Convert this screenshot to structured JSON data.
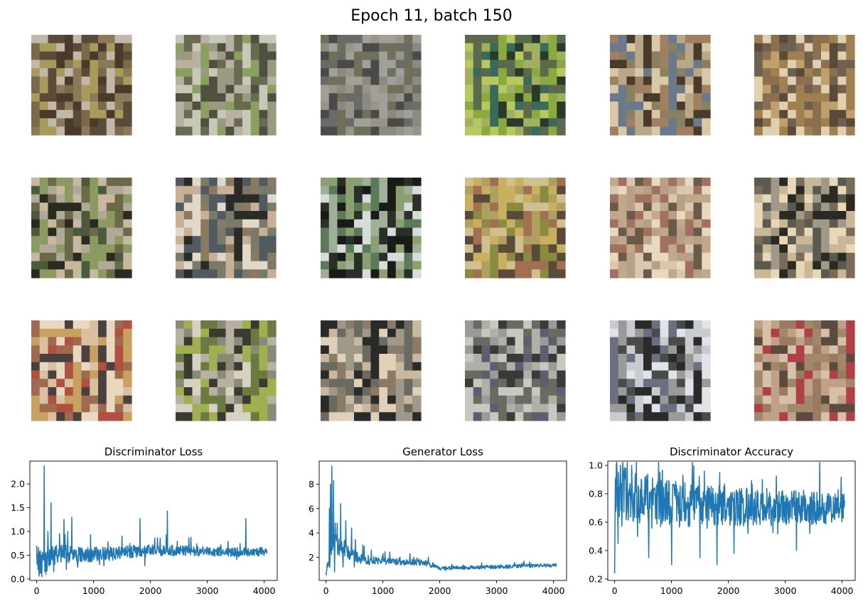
{
  "figure": {
    "title": "Epoch 11, batch 150"
  },
  "sample_grid": {
    "rows": 3,
    "cols": 6,
    "samples": [
      {
        "colors": [
          "#7a6a4a",
          "#a89a5a",
          "#5a4a3a",
          "#c0b8a8",
          "#4a3a2a",
          "#8a7a5a"
        ]
      },
      {
        "colors": [
          "#9a9a80",
          "#b8b0a0",
          "#6a6a50",
          "#c8c8b8",
          "#8aa060",
          "#505040"
        ]
      },
      {
        "colors": [
          "#6a6a68",
          "#8a8a80",
          "#4a4a48",
          "#a0a098",
          "#70705a",
          "#9a9488"
        ]
      },
      {
        "colors": [
          "#3a6a5a",
          "#8aaa40",
          "#2a3a2a",
          "#b8c860",
          "#5a6a4a",
          "#a0b060"
        ]
      },
      {
        "colors": [
          "#8a8060",
          "#b8a888",
          "#4a3a2a",
          "#d8c8a8",
          "#a08060",
          "#6a7a8a"
        ]
      },
      {
        "colors": [
          "#8a7050",
          "#c0a068",
          "#5a4a3a",
          "#e0d0b0",
          "#a08050",
          "#706050"
        ]
      },
      {
        "colors": [
          "#4a5a3a",
          "#8a9a60",
          "#2a2a22",
          "#b0a898",
          "#6a6a48",
          "#c8b8a0"
        ]
      },
      {
        "colors": [
          "#7a7a68",
          "#c8b098",
          "#2a2a28",
          "#e0d8c8",
          "#8a7a60",
          "#505a60"
        ]
      },
      {
        "colors": [
          "#2a3028",
          "#d8dcd8",
          "#5a7a58",
          "#a0b098",
          "#1a1a18",
          "#8aa070"
        ]
      },
      {
        "colors": [
          "#8a8a40",
          "#c8b060",
          "#5a4a3a",
          "#d0c090",
          "#a07050",
          "#b0a060"
        ]
      },
      {
        "colors": [
          "#b8a088",
          "#d8c8b0",
          "#6a5a4a",
          "#e8d8c0",
          "#a07060",
          "#c0a888"
        ]
      },
      {
        "colors": [
          "#5a5a50",
          "#a09888",
          "#2a2a22",
          "#e8d8b8",
          "#7a6a58",
          "#c8b898"
        ]
      },
      {
        "colors": [
          "#a06a50",
          "#d8c0a0",
          "#4a4040",
          "#e8d8c0",
          "#b05040",
          "#c8a060"
        ]
      },
      {
        "colors": [
          "#8a8a78",
          "#b8b0a0",
          "#3a3a30",
          "#d8d0c0",
          "#6a7a40",
          "#a0b050"
        ]
      },
      {
        "colors": [
          "#6a6a60",
          "#c8b8a0",
          "#2a2a28",
          "#e0d0b8",
          "#8a7a68",
          "#a09888"
        ]
      },
      {
        "colors": [
          "#5a6070",
          "#9a9a98",
          "#3a3a38",
          "#c8c8c0",
          "#6a6a60",
          "#b0b0a8"
        ]
      },
      {
        "colors": [
          "#4a4a48",
          "#c8ccd0",
          "#2a2a2a",
          "#e0e4e8",
          "#6a7080",
          "#9a9a98"
        ]
      },
      {
        "colors": [
          "#9a7a60",
          "#c0a088",
          "#5a4a40",
          "#d8c0a8",
          "#b04048",
          "#a08868"
        ]
      }
    ]
  },
  "chart_data": [
    {
      "type": "line",
      "title": "Discriminator Loss",
      "xlabel": "",
      "ylabel": "",
      "xlim": [
        -120,
        4230
      ],
      "ylim": [
        -0.03,
        2.48
      ],
      "xticks": [
        0,
        1000,
        2000,
        3000,
        4000
      ],
      "xtick_labels": [
        "0",
        "1000",
        "2000",
        "3000",
        "4000"
      ],
      "yticks": [
        0.0,
        0.5,
        1.0,
        1.5,
        2.0
      ],
      "ytick_labels": [
        "0.0",
        "0.5",
        "1.0",
        "1.5",
        "2.0"
      ],
      "grid": false,
      "color": "#1f77b4",
      "x_end": 4050,
      "envelope": [
        [
          0,
          0.45,
          0.5
        ],
        [
          80,
          0.3,
          0.6
        ],
        [
          300,
          0.55,
          0.4
        ],
        [
          700,
          0.5,
          0.35
        ],
        [
          1200,
          0.52,
          0.3
        ],
        [
          1600,
          0.55,
          0.3
        ],
        [
          2000,
          0.6,
          0.25
        ],
        [
          2500,
          0.6,
          0.22
        ],
        [
          3000,
          0.58,
          0.2
        ],
        [
          3500,
          0.56,
          0.2
        ],
        [
          4050,
          0.58,
          0.18
        ]
      ],
      "spikes": [
        [
          0,
          0.7
        ],
        [
          40,
          0.06
        ],
        [
          90,
          0.05
        ],
        [
          130,
          2.38
        ],
        [
          160,
          0.1
        ],
        [
          200,
          1.0
        ],
        [
          250,
          1.6
        ],
        [
          300,
          0.15
        ],
        [
          400,
          0.95
        ],
        [
          480,
          1.25
        ],
        [
          520,
          0.2
        ],
        [
          620,
          1.3
        ],
        [
          720,
          0.25
        ],
        [
          950,
          0.93
        ],
        [
          1180,
          0.28
        ],
        [
          1500,
          0.9
        ],
        [
          1820,
          1.27
        ],
        [
          1900,
          0.28
        ],
        [
          2300,
          1.43
        ],
        [
          3680,
          1.27
        ]
      ]
    },
    {
      "type": "line",
      "title": "Generator Loss",
      "xlabel": "",
      "ylabel": "",
      "xlim": [
        -120,
        4230
      ],
      "ylim": [
        0.1,
        9.9
      ],
      "xticks": [
        0,
        1000,
        2000,
        3000,
        4000
      ],
      "xtick_labels": [
        "0",
        "1000",
        "2000",
        "3000",
        "4000"
      ],
      "yticks": [
        2,
        4,
        6,
        8
      ],
      "ytick_labels": [
        "2",
        "4",
        "6",
        "8"
      ],
      "grid": false,
      "color": "#1f77b4",
      "x_end": 4050,
      "envelope": [
        [
          0,
          0.8,
          0.5
        ],
        [
          60,
          1.8,
          1.2
        ],
        [
          120,
          3.0,
          2.0
        ],
        [
          250,
          3.0,
          1.8
        ],
        [
          400,
          2.4,
          1.2
        ],
        [
          600,
          1.9,
          0.9
        ],
        [
          900,
          1.7,
          0.6
        ],
        [
          1300,
          1.6,
          0.5
        ],
        [
          1700,
          1.6,
          0.5
        ],
        [
          2000,
          1.1,
          0.3
        ],
        [
          2500,
          1.15,
          0.3
        ],
        [
          3000,
          1.2,
          0.3
        ],
        [
          3500,
          1.3,
          0.3
        ],
        [
          4050,
          1.35,
          0.3
        ]
      ],
      "spikes": [
        [
          0,
          0.5
        ],
        [
          60,
          6.0
        ],
        [
          80,
          8.0
        ],
        [
          100,
          9.5
        ],
        [
          130,
          8.3
        ],
        [
          150,
          0.8
        ],
        [
          200,
          4.8
        ],
        [
          260,
          6.4
        ],
        [
          300,
          1.2
        ],
        [
          350,
          5.0
        ],
        [
          450,
          4.4
        ],
        [
          500,
          1.2
        ],
        [
          650,
          3.0
        ],
        [
          800,
          2.6
        ],
        [
          1000,
          2.3
        ],
        [
          1300,
          2.0
        ],
        [
          1800,
          2.0
        ],
        [
          2100,
          0.9
        ]
      ]
    },
    {
      "type": "line",
      "title": "Discriminator Accuracy",
      "xlabel": "",
      "ylabel": "",
      "xlim": [
        -120,
        4230
      ],
      "ylim": [
        0.19,
        1.03
      ],
      "xticks": [
        0,
        1000,
        2000,
        3000,
        4000
      ],
      "xtick_labels": [
        "0",
        "1000",
        "2000",
        "3000",
        "4000"
      ],
      "yticks": [
        0.2,
        0.4,
        0.6,
        0.8,
        1.0
      ],
      "ytick_labels": [
        "0.2",
        "0.4",
        "0.6",
        "0.8",
        "1.0"
      ],
      "grid": false,
      "color": "#1f77b4",
      "x_end": 4050,
      "envelope": [
        [
          0,
          0.62,
          0.5
        ],
        [
          40,
          0.8,
          0.35
        ],
        [
          300,
          0.78,
          0.35
        ],
        [
          700,
          0.74,
          0.35
        ],
        [
          1200,
          0.72,
          0.32
        ],
        [
          1600,
          0.72,
          0.3
        ],
        [
          2000,
          0.71,
          0.28
        ],
        [
          2500,
          0.7,
          0.25
        ],
        [
          3000,
          0.7,
          0.25
        ],
        [
          3500,
          0.7,
          0.25
        ],
        [
          4050,
          0.7,
          0.2
        ]
      ],
      "spikes": [
        [
          0,
          0.24
        ],
        [
          30,
          1.0
        ],
        [
          60,
          0.45
        ],
        [
          100,
          1.0
        ],
        [
          200,
          0.98
        ],
        [
          300,
          1.0
        ],
        [
          400,
          0.5
        ],
        [
          600,
          0.35
        ],
        [
          800,
          0.95
        ],
        [
          1000,
          0.3
        ],
        [
          1200,
          0.93
        ],
        [
          1500,
          0.35
        ],
        [
          1580,
          0.96
        ],
        [
          1800,
          0.3
        ],
        [
          1850,
          0.95
        ],
        [
          2100,
          0.38
        ],
        [
          2600,
          0.9
        ],
        [
          3200,
          0.4
        ]
      ]
    }
  ]
}
